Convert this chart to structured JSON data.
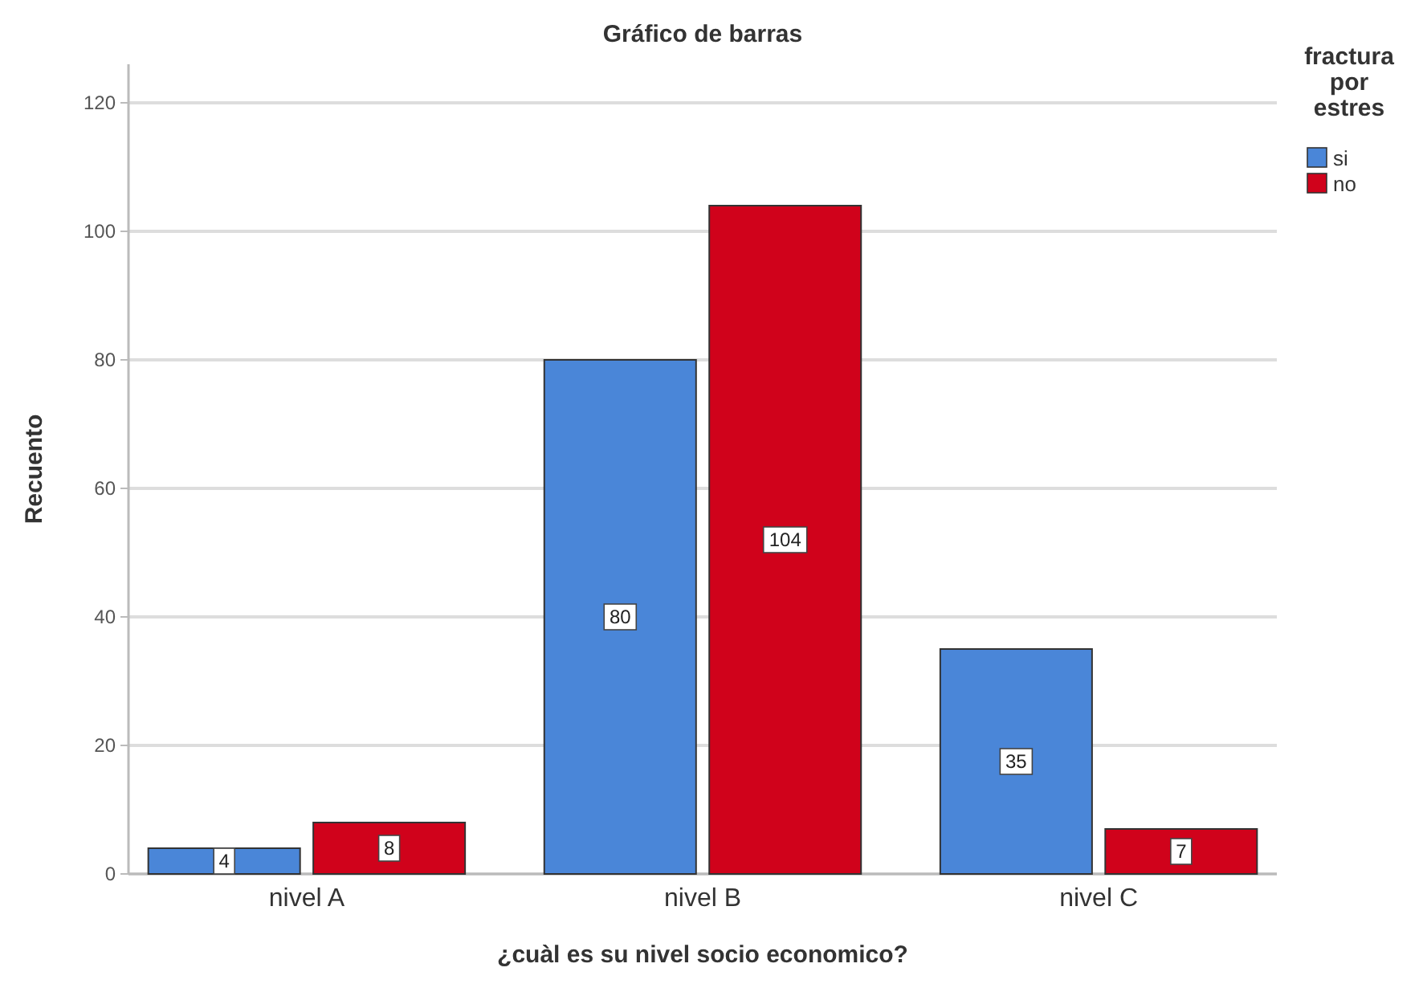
{
  "chart_data": {
    "type": "bar",
    "title": "Gráfico de barras",
    "xlabel": "¿cuàl es su nivel socio economico?",
    "ylabel": "Recuento",
    "legend_title": "fractura por estres",
    "categories": [
      "nivel A",
      "nivel B",
      "nivel C"
    ],
    "series": [
      {
        "name": "si",
        "color": "#4a86d8",
        "values": [
          4,
          80,
          35
        ]
      },
      {
        "name": "no",
        "color": "#d0021b",
        "values": [
          8,
          104,
          7
        ]
      }
    ],
    "ylim": [
      0,
      126
    ],
    "yticks": [
      0,
      20,
      40,
      60,
      80,
      100,
      120
    ],
    "grid": "y",
    "legend": "top right",
    "data_labels": true
  }
}
